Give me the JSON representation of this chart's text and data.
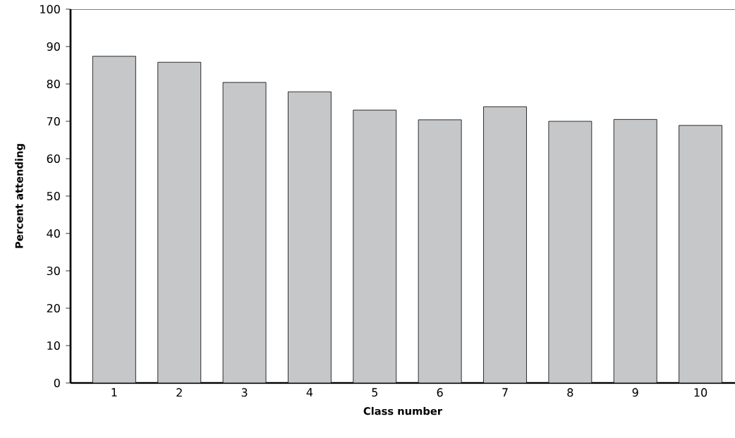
{
  "chart_data": {
    "type": "bar",
    "xlabel": "Class number",
    "ylabel": "Percent attending",
    "categories": [
      "1",
      "2",
      "3",
      "4",
      "5",
      "6",
      "7",
      "8",
      "9",
      "10"
    ],
    "values": [
      87.4,
      85.8,
      80.4,
      77.9,
      73.0,
      70.4,
      73.9,
      70.0,
      70.5,
      68.9
    ],
    "color": "#c6c7c9",
    "ylim": [
      0,
      100
    ],
    "yticks": [
      0,
      10,
      20,
      30,
      40,
      50,
      60,
      70,
      80,
      90,
      100
    ],
    "grid": false
  }
}
